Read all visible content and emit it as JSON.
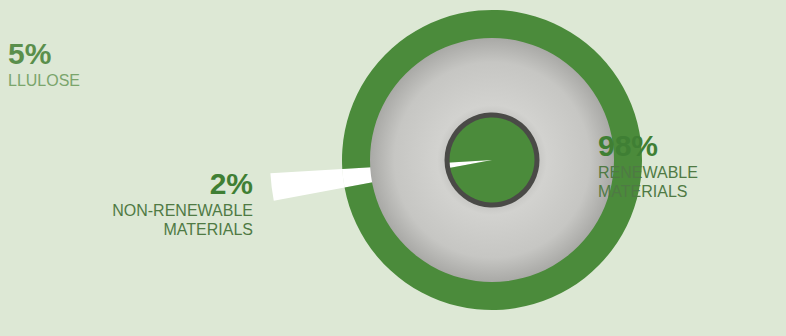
{
  "chart_data": {
    "type": "pie",
    "categories": [
      "NON-RENEWABLE MATERIALS",
      "RENEWABLE MATERIALS"
    ],
    "values": [
      2,
      98
    ],
    "value_labels": [
      "2%",
      "98%"
    ],
    "colors": [
      "#ffffff",
      "#4b8b3b"
    ],
    "data_labels": true,
    "annotations": [
      {
        "value": 5,
        "label": "5%",
        "text": "LLULOSE"
      }
    ]
  }
}
